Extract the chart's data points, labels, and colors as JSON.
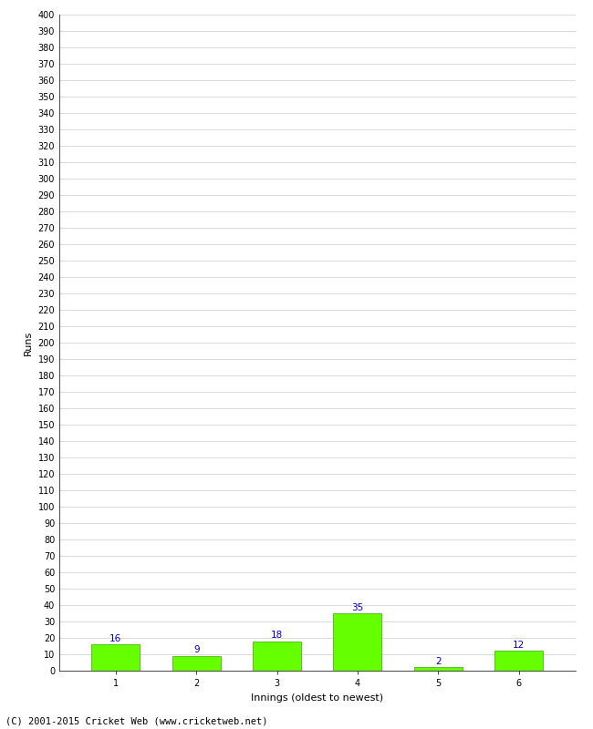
{
  "categories": [
    "1",
    "2",
    "3",
    "4",
    "5",
    "6"
  ],
  "values": [
    16,
    9,
    18,
    35,
    2,
    12
  ],
  "bar_color": "#66ff00",
  "bar_edge_color": "#33aa00",
  "label_color": "#0000cc",
  "xlabel": "Innings (oldest to newest)",
  "ylabel": "Runs",
  "ylim": [
    0,
    400
  ],
  "ytick_step": 10,
  "background_color": "#ffffff",
  "grid_color": "#cccccc",
  "footer": "(C) 2001-2015 Cricket Web (www.cricketweb.net)",
  "label_fontsize": 7.5,
  "axis_fontsize": 7,
  "footer_fontsize": 7.5,
  "xlabel_fontsize": 8,
  "ylabel_fontsize": 8
}
